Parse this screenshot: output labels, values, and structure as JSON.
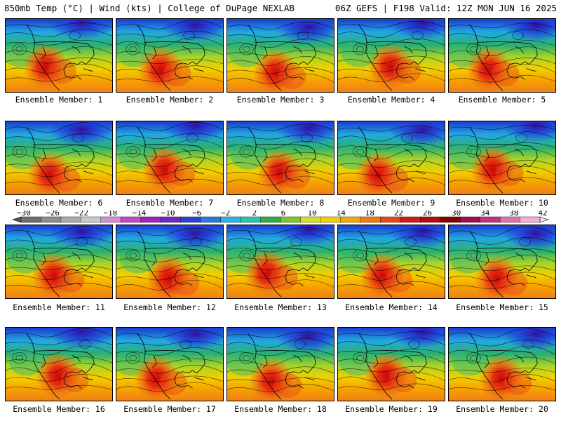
{
  "header": {
    "left": "850mb Temp (°C) | Wind (kts) | College of DuPage NEXLAB",
    "right": "06Z GEFS | F198 Valid: 12Z MON JUN 16 2025"
  },
  "member_prefix": "Ensemble Member:",
  "members": [
    {
      "label": "Ensemble Member: 1"
    },
    {
      "label": "Ensemble Member: 2"
    },
    {
      "label": "Ensemble Member: 3"
    },
    {
      "label": "Ensemble Member: 4"
    },
    {
      "label": "Ensemble Member: 5"
    },
    {
      "label": "Ensemble Member: 6"
    },
    {
      "label": "Ensemble Member: 7"
    },
    {
      "label": "Ensemble Member: 8"
    },
    {
      "label": "Ensemble Member: 9"
    },
    {
      "label": "Ensemble Member: 10"
    },
    {
      "label": "Ensemble Member: 11"
    },
    {
      "label": "Ensemble Member: 12"
    },
    {
      "label": "Ensemble Member: 13"
    },
    {
      "label": "Ensemble Member: 14"
    },
    {
      "label": "Ensemble Member: 15"
    },
    {
      "label": "Ensemble Member: 16"
    },
    {
      "label": "Ensemble Member: 17"
    },
    {
      "label": "Ensemble Member: 18"
    },
    {
      "label": "Ensemble Member: 19"
    },
    {
      "label": "Ensemble Member: 20"
    }
  ],
  "colorbar": {
    "ticks": [
      "−30",
      "−26",
      "−22",
      "−18",
      "−14",
      "−10",
      "−6",
      "−2",
      "2",
      "6",
      "10",
      "14",
      "18",
      "22",
      "26",
      "30",
      "34",
      "38",
      "42"
    ],
    "colors": [
      "#6e6e6e",
      "#8e8e8e",
      "#aaaaaa",
      "#c8c8c8",
      "#d88ad8",
      "#cc44cc",
      "#a020c0",
      "#6a2ac8",
      "#3040d8",
      "#2a78e8",
      "#28b4e8",
      "#20c8b0",
      "#28b040",
      "#78c828",
      "#d8e020",
      "#f4d000",
      "#f8a800",
      "#f07c10",
      "#e84818",
      "#d81818",
      "#b40c0c",
      "#880000",
      "#a01050",
      "#c83080",
      "#e070b0",
      "#f0b0d8"
    ]
  }
}
